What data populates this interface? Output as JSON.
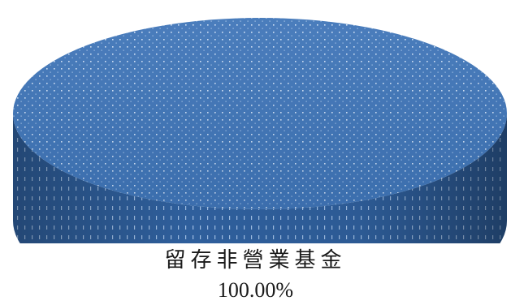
{
  "chart_data": {
    "type": "pie",
    "title": "",
    "slices": [
      {
        "label": "留存非營業基金",
        "value": 100.0,
        "percent_label": "100.00%",
        "color": "#3f75b8"
      }
    ],
    "style": "3d",
    "pattern": "dotted"
  }
}
